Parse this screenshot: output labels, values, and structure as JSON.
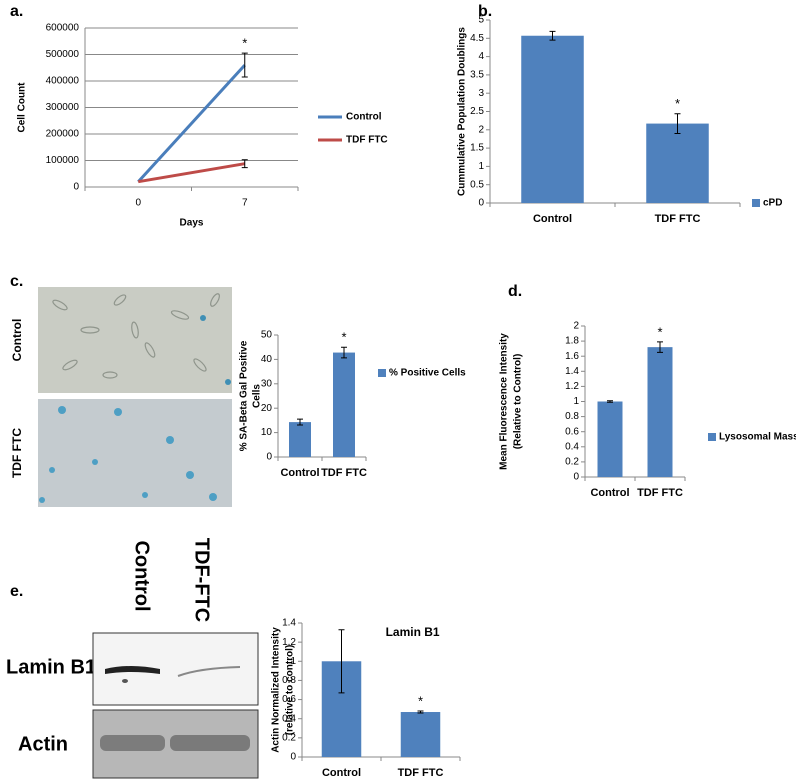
{
  "chart_data": [
    {
      "type": "line",
      "categories": [
        "0",
        "7"
      ],
      "xlabel": "Days",
      "ylabel": [
        "Cell Count"
      ],
      "ylim": [
        0,
        600000
      ],
      "yticks": [
        0,
        100000,
        200000,
        300000,
        400000,
        500000,
        600000
      ],
      "grid": true,
      "series": [
        {
          "name": "Control",
          "color": "#4a7ebb",
          "values": [
            20000,
            460000
          ],
          "errors": [
            null,
            45000
          ],
          "value_annotations": [
            null,
            "*"
          ]
        },
        {
          "name": "TDF FTC",
          "color": "#be4b48",
          "values": [
            20000,
            88000
          ],
          "errors": [
            null,
            15000
          ]
        }
      ]
    },
    {
      "type": "bar",
      "categories": [
        "Control",
        "TDF FTC"
      ],
      "ylabel": [
        "Cummulative Population Doublings"
      ],
      "ylim": [
        0,
        5
      ],
      "yticks": [
        0,
        0.5,
        1,
        1.5,
        2,
        2.5,
        3,
        3.5,
        4,
        4.5,
        5
      ],
      "series": [
        {
          "name": "cPD",
          "color": "#4f81bd",
          "values": [
            4.57,
            2.17
          ],
          "errors": [
            0.12,
            0.27
          ],
          "value_annotations": [
            null,
            "*"
          ]
        }
      ]
    },
    {
      "type": "bar",
      "categories": [
        "Control",
        "TDF FTC"
      ],
      "ylabel": [
        "% SA-Beta Gal Positive",
        "Cells"
      ],
      "ylim": [
        0,
        50
      ],
      "yticks": [
        0,
        10,
        20,
        30,
        40,
        50
      ],
      "series": [
        {
          "name": "% Positive Cells",
          "color": "#4f81bd",
          "values": [
            14.3,
            42.8
          ],
          "errors": [
            1.2,
            2.2
          ],
          "value_annotations": [
            null,
            "*"
          ]
        }
      ]
    },
    {
      "type": "bar",
      "categories": [
        "Control",
        "TDF FTC"
      ],
      "ylabel": [
        "Mean Fluorescence Intensity",
        "(Relative to Control)"
      ],
      "ylim": [
        0,
        2
      ],
      "yticks": [
        0,
        0.2,
        0.4,
        0.6,
        0.8,
        1,
        1.2,
        1.4,
        1.6,
        1.8,
        2
      ],
      "series": [
        {
          "name": "Lysosomal Mass",
          "color": "#4f81bd",
          "values": [
            1,
            1.72
          ],
          "errors": [
            0.01,
            0.07
          ],
          "value_annotations": [
            null,
            "*"
          ]
        }
      ]
    },
    {
      "type": "bar",
      "title": "Lamin B1",
      "categories": [
        "Control",
        "TDF FTC"
      ],
      "ylabel": [
        "Actin Normalized Intensity",
        "(relative to control)"
      ],
      "ylim": [
        0,
        1.4
      ],
      "yticks": [
        0,
        0.2,
        0.4,
        0.6,
        0.8,
        1,
        1.2,
        1.4
      ],
      "color": "#4f81bd",
      "values": [
        1,
        0.47
      ],
      "errors": [
        0.33,
        0.01
      ],
      "value_annotations": [
        null,
        "*"
      ]
    }
  ],
  "panel_labels": [
    "a.",
    "b.",
    "c.",
    "d.",
    "e."
  ],
  "micrograph_labels": [
    "Control",
    "TDF FTC"
  ],
  "blot": {
    "columns": [
      "Control",
      "TDF-FTC"
    ],
    "rows": [
      "Lamin B1",
      "Actin"
    ]
  }
}
